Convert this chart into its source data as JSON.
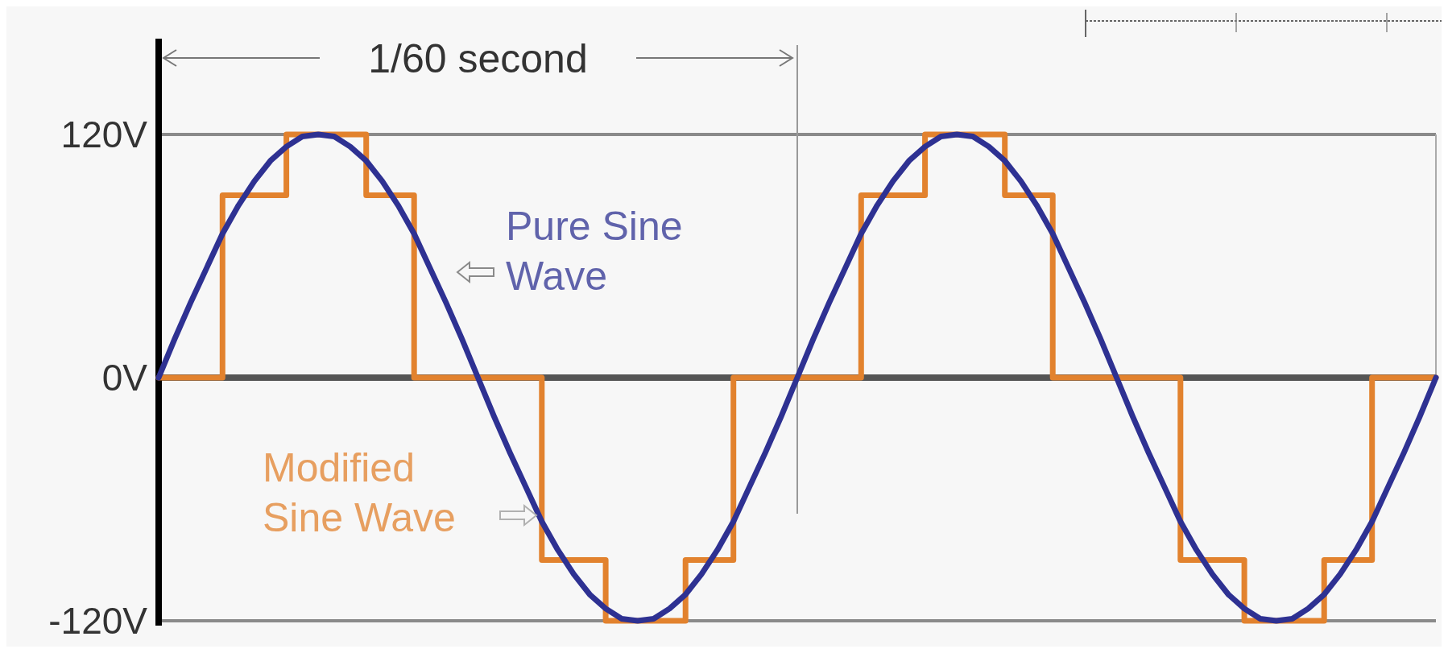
{
  "chart_data": {
    "type": "line",
    "categories": [
      null,
      null,
      null,
      null,
      null,
      null,
      null,
      null,
      null,
      null,
      null,
      null,
      null,
      null,
      null,
      null,
      null,
      null,
      null,
      null,
      null,
      null,
      null,
      null,
      null,
      null,
      null,
      null,
      null,
      null,
      null,
      null,
      null,
      null,
      null,
      null,
      null,
      null,
      null,
      null,
      null,
      null,
      null,
      null,
      null,
      null,
      null,
      null,
      null,
      null,
      null,
      null,
      null,
      null,
      null,
      null,
      null,
      null,
      null,
      null,
      null,
      null,
      null,
      null,
      null,
      null,
      null,
      null,
      null,
      null,
      null,
      null,
      null,
      null,
      null,
      null,
      null,
      null,
      null,
      null,
      null
    ],
    "ylim": [
      -120,
      120
    ],
    "yticks": [
      {
        "value": -120,
        "label": "-120V"
      },
      {
        "value": 0,
        "label": "0V"
      },
      {
        "value": 120,
        "label": "120V"
      }
    ],
    "legend": false,
    "line_style": "solid",
    "marker": "none",
    "annotations": [
      "1/60 second"
    ],
    "series": [
      {
        "name": "Pure Sine Wave",
        "color": "#2e3192",
        "values": [
          0,
          19,
          37,
          54,
          71,
          85,
          97,
          107,
          114,
          119,
          120,
          119,
          114,
          107,
          97,
          85,
          71,
          54,
          37,
          19,
          0,
          -19,
          -37,
          -54,
          -71,
          -85,
          -97,
          -107,
          -114,
          -119,
          -120,
          -119,
          -114,
          -107,
          -97,
          -85,
          -71,
          -54,
          -37,
          -19,
          0,
          19,
          37,
          54,
          71,
          85,
          97,
          107,
          114,
          119,
          120,
          119,
          114,
          107,
          97,
          85,
          71,
          54,
          37,
          19,
          0,
          -19,
          -37,
          -54,
          -71,
          -85,
          -97,
          -107,
          -114,
          -119,
          -120,
          -119,
          -114,
          -107,
          -97,
          -85,
          -71,
          -54,
          -37,
          -19,
          0
        ]
      },
      {
        "name": "Modified Sine Wave",
        "type": "step",
        "color": "#e2822e",
        "values": [
          0,
          0,
          0,
          0,
          90,
          90,
          90,
          90,
          120,
          120,
          120,
          120,
          120,
          90,
          90,
          90,
          0,
          0,
          0,
          0,
          0,
          0,
          0,
          0,
          -90,
          -90,
          -90,
          -90,
          -120,
          -120,
          -120,
          -120,
          -120,
          -90,
          -90,
          -90,
          0,
          0,
          0,
          0,
          0,
          0,
          0,
          0,
          90,
          90,
          90,
          90,
          120,
          120,
          120,
          120,
          120,
          90,
          90,
          90,
          0,
          0,
          0,
          0,
          0,
          0,
          0,
          0,
          -90,
          -90,
          -90,
          -90,
          -120,
          -120,
          -120,
          -120,
          -120,
          -90,
          -90,
          -90,
          0,
          0,
          0,
          0,
          0
        ]
      }
    ]
  }
}
